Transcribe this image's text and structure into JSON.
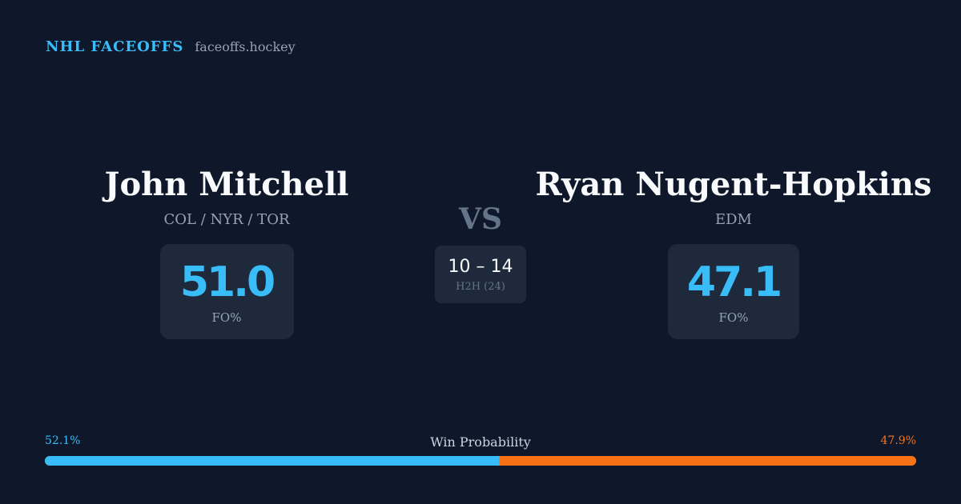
{
  "brand": {
    "name": "NHL FACEOFFS",
    "domain": "faceoffs.hockey"
  },
  "player_left": {
    "name": "John Mitchell",
    "team": "COL / NYR / TOR",
    "stat_value": "51.0",
    "stat_label": "FO%"
  },
  "player_right": {
    "name": "Ryan Nugent-Hopkins",
    "team": "EDM",
    "stat_value": "47.1",
    "stat_label": "FO%"
  },
  "versus": {
    "label": "VS",
    "h2h_score": "10 – 14",
    "h2h_label": "H2H (24)"
  },
  "win_probability": {
    "title": "Win Probability",
    "left_label": "52.1%",
    "right_label": "47.9%",
    "left_fraction": 0.521,
    "right_fraction": 0.479
  },
  "colors": {
    "background": "#0f172a",
    "accent_blue": "#38bdf8",
    "accent_orange": "#f97316",
    "card": "#1e293b"
  }
}
